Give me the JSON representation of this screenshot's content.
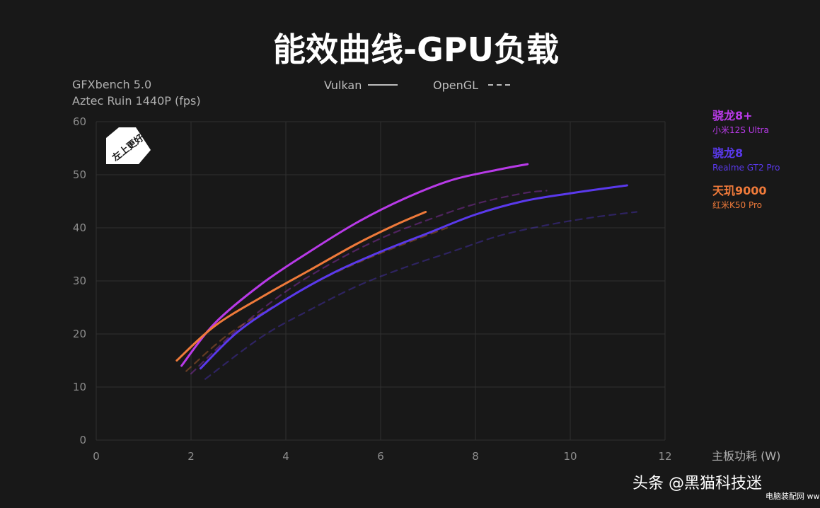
{
  "chart_data": {
    "type": "line",
    "title": "能效曲线-GPU负载",
    "ylabel_line1": "GFXbench 5.0",
    "ylabel_line2": "Aztec Ruin 1440P (fps)",
    "xlabel": "主板功耗 (W)",
    "xlim": [
      0,
      12
    ],
    "ylim": [
      0,
      60
    ],
    "x_ticks": [
      "0",
      "2",
      "4",
      "6",
      "8",
      "10",
      "12"
    ],
    "y_ticks": [
      "0",
      "10",
      "20",
      "30",
      "40",
      "50",
      "60"
    ],
    "grid": true,
    "badge": "左上更好",
    "legend_styles": [
      {
        "label": "Vulkan",
        "style": "solid"
      },
      {
        "label": "OpenGL",
        "style": "dashed"
      }
    ],
    "series": [
      {
        "name": "骁龙8+",
        "device": "小米12S Ultra",
        "color": "#b83ae8",
        "vulkan": [
          [
            1.8,
            14
          ],
          [
            2.5,
            22
          ],
          [
            3.5,
            29.5
          ],
          [
            4.5,
            35.5
          ],
          [
            5.5,
            41
          ],
          [
            6.5,
            45.5
          ],
          [
            7.5,
            49
          ],
          [
            8.5,
            51
          ],
          [
            9.1,
            52
          ]
        ],
        "opengl": [
          [
            2.0,
            12.5
          ],
          [
            3.0,
            21
          ],
          [
            4.0,
            28
          ],
          [
            5.0,
            33.5
          ],
          [
            6.0,
            38
          ],
          [
            7.0,
            41.5
          ],
          [
            8.0,
            44.5
          ],
          [
            9.0,
            46.5
          ],
          [
            9.5,
            47
          ]
        ]
      },
      {
        "name": "骁龙8",
        "device": "Realme GT2 Pro",
        "color": "#5a39ec",
        "vulkan": [
          [
            2.2,
            13.5
          ],
          [
            3.0,
            20.5
          ],
          [
            4.0,
            26.5
          ],
          [
            5.0,
            31.5
          ],
          [
            6.0,
            35.5
          ],
          [
            7.0,
            39
          ],
          [
            8.0,
            42.5
          ],
          [
            9.0,
            45
          ],
          [
            10.0,
            46.5
          ],
          [
            11.2,
            48
          ]
        ],
        "opengl": [
          [
            2.3,
            11.5
          ],
          [
            3.5,
            19.5
          ],
          [
            4.5,
            24.5
          ],
          [
            5.5,
            29
          ],
          [
            6.5,
            32.5
          ],
          [
            7.5,
            35.5
          ],
          [
            8.5,
            38.5
          ],
          [
            9.5,
            40.5
          ],
          [
            10.5,
            42
          ],
          [
            11.4,
            43
          ]
        ]
      },
      {
        "name": "天玑9000",
        "device": "红米K50 Pro",
        "color": "#ef7a3a",
        "vulkan": [
          [
            1.7,
            15
          ],
          [
            2.5,
            21.5
          ],
          [
            3.5,
            27
          ],
          [
            4.5,
            32
          ],
          [
            5.5,
            37
          ],
          [
            6.3,
            40.5
          ],
          [
            6.95,
            43
          ]
        ],
        "opengl": [
          [
            1.9,
            13
          ],
          [
            2.8,
            20
          ],
          [
            3.8,
            25.5
          ],
          [
            4.8,
            30.5
          ],
          [
            5.8,
            34.5
          ],
          [
            6.8,
            38
          ],
          [
            7.4,
            40
          ]
        ]
      }
    ]
  },
  "watermark": {
    "text": "头条 @黑猫科技迷",
    "sub": "电脑装配网 www.dnzp.com"
  }
}
